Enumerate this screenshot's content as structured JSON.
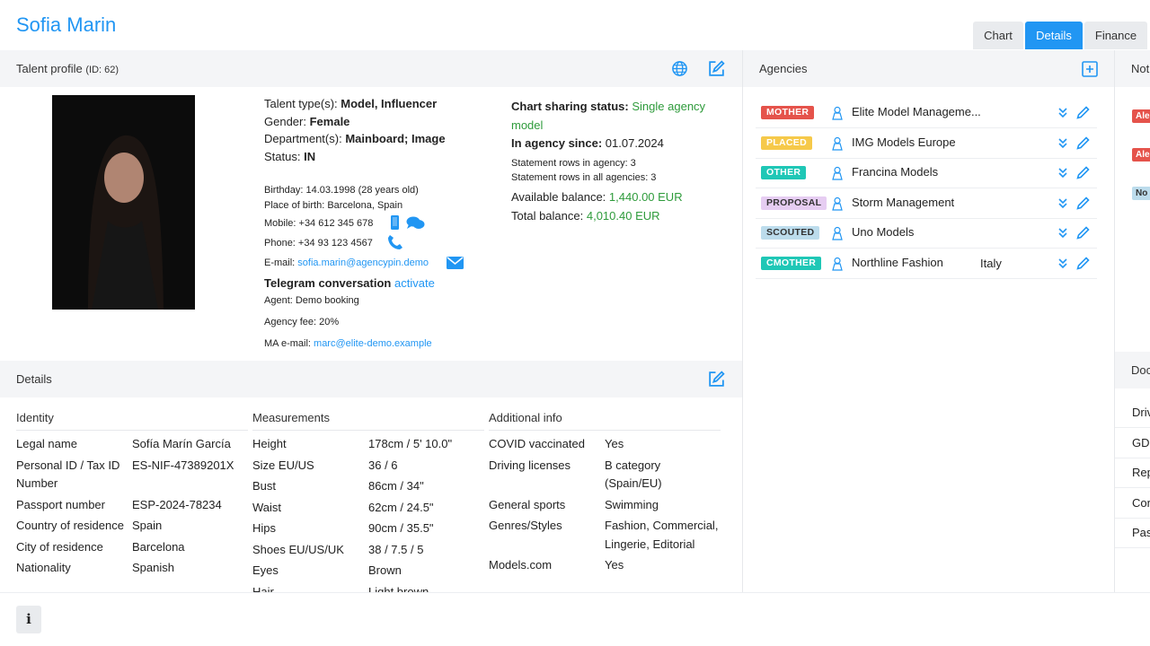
{
  "header": {
    "title": "Sofia Marin",
    "tabs": [
      "Chart",
      "Details",
      "Finance"
    ],
    "active_tab": 1
  },
  "profile": {
    "heading": "Talent profile",
    "id_label": "(ID: 62)",
    "type_label": "Talent type(s):",
    "type": "Model, Influencer",
    "gender_label": "Gender:",
    "gender": "Female",
    "department_label": "Department(s):",
    "department": "Mainboard; Image",
    "status_label": "Status:",
    "status": "IN",
    "birthday": "Birthday: 14.03.1998 (28 years old)",
    "birthplace": "Place of birth: Barcelona, Spain",
    "mobile": "Mobile: +34 612 345 678",
    "phone": "Phone: +34 93 123 4567",
    "email_label": "E-mail:",
    "email": "sofia.marin@agencypin.demo",
    "telegram_label": "Telegram conversation",
    "telegram_action": "activate",
    "agent": "Agent: Demo booking",
    "fee": "Agency fee: 20%",
    "ma_label": "MA e-mail:",
    "ma_email": "marc@elite-demo.example",
    "sharing_label": "Chart sharing status:",
    "sharing": "Single agency model",
    "since_label": "In agency since:",
    "since": "01.07.2024",
    "rows_agency": "Statement rows in agency: 3",
    "rows_all": "Statement rows in all agencies: 3",
    "available_label": "Available balance:",
    "available": "1,440.00 EUR",
    "total_label": "Total balance:",
    "total": "4,010.40 EUR"
  },
  "agencies": {
    "heading": "Agencies",
    "rows": [
      {
        "tag": "MOTHER",
        "tag_color": "#e5534b",
        "tag_text": "#ffffff",
        "name": "Elite Model Manageme..."
      },
      {
        "tag": "PLACED",
        "tag_color": "#f6c94a",
        "tag_text": "#ffffff",
        "name": "IMG Models Europe"
      },
      {
        "tag": "OTHER",
        "tag_color": "#1fc7b6",
        "tag_text": "#ffffff",
        "name": "Francina Models"
      },
      {
        "tag": "PROPOSAL",
        "tag_color": "#e6cdf2",
        "tag_text": "#333333",
        "name": "Storm Management"
      },
      {
        "tag": "SCOUTED",
        "tag_color": "#bcdcec",
        "tag_text": "#333333",
        "name": "Uno Models"
      },
      {
        "tag": "CMOTHER",
        "tag_color": "#1fc7b6",
        "tag_text": "#ffffff",
        "name": "Northline Fashion",
        "country": "Italy"
      }
    ]
  },
  "notes": {
    "heading": "Not",
    "tags": [
      {
        "text": "Ale",
        "color": "#e5534b",
        "text_color": "#ffffff"
      },
      {
        "text": "Ale",
        "color": "#e5534b",
        "text_color": "#ffffff"
      },
      {
        "text": "No",
        "color": "#bcdcec",
        "text_color": "#333333"
      }
    ]
  },
  "documents": {
    "heading": "Doc",
    "items": [
      "Driv",
      "GDI",
      "Rep",
      "Con",
      "Pas"
    ]
  },
  "details": {
    "heading": "Details",
    "groups": [
      {
        "title": "Identity",
        "rows": [
          [
            "Legal name",
            "Sofía Marín García"
          ],
          [
            "Personal ID / Tax ID Number",
            "ES-NIF-47389201X"
          ],
          [
            "Passport number",
            "ESP-2024-78234"
          ],
          [
            "Country of residence",
            "Spain"
          ],
          [
            "City of residence",
            "Barcelona"
          ],
          [
            "Nationality",
            "Spanish"
          ]
        ]
      },
      {
        "title": "Measurements",
        "rows": [
          [
            "Height",
            "178cm / 5' 10.0\""
          ],
          [
            "Size EU/US",
            "36 / 6"
          ],
          [
            "Bust",
            "86cm / 34\""
          ],
          [
            "Waist",
            "62cm / 24.5\""
          ],
          [
            "Hips",
            "90cm / 35.5\""
          ],
          [
            "Shoes EU/US/UK",
            "38 / 7.5 / 5"
          ],
          [
            "Eyes",
            "Brown"
          ],
          [
            "Hair",
            "Light brown"
          ]
        ]
      },
      {
        "title": "Additional info",
        "rows": [
          [
            "COVID vaccinated",
            "Yes"
          ],
          [
            "Driving licenses",
            "B category (Spain/EU)"
          ],
          [
            "General sports",
            "Swimming"
          ],
          [
            "Genres/Styles",
            "Fashion, Commercial, Lingerie, Editorial"
          ],
          [
            "Models.com",
            "Yes"
          ]
        ]
      }
    ]
  },
  "footer": {
    "info": "i"
  }
}
